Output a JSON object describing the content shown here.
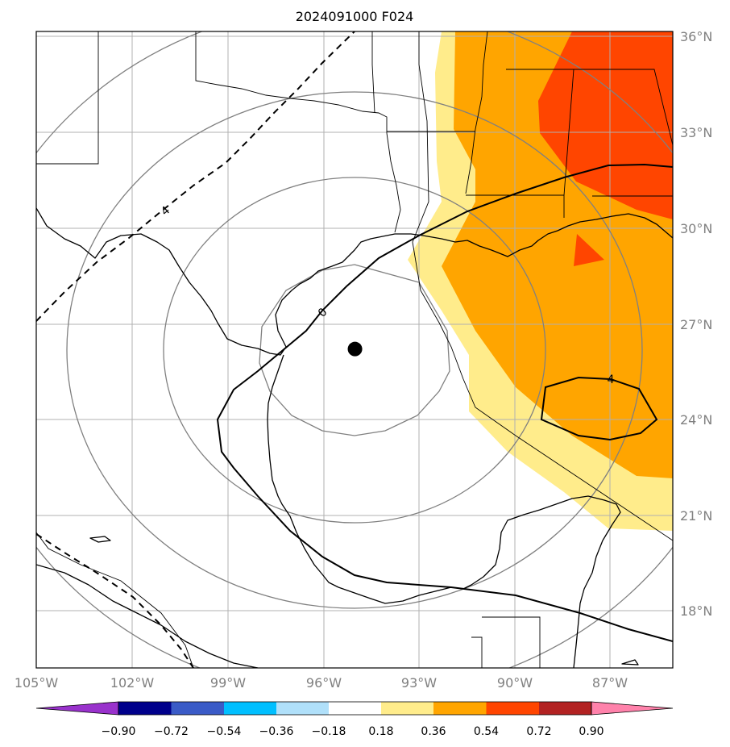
{
  "title": "2024091000 F024",
  "map": {
    "lon_labels": [
      "105°W",
      "102°W",
      "99°W",
      "96°W",
      "93°W",
      "90°W",
      "87°W"
    ],
    "lat_labels": [
      "36°N",
      "33°N",
      "30°N",
      "27°N",
      "24°N",
      "21°N",
      "18°N"
    ],
    "storm_center": {
      "lon": -95.0,
      "lat": 26.2
    },
    "contour_labels": [
      "4",
      "0",
      "4"
    ]
  },
  "colorbar": {
    "tick_labels": [
      "−0.90",
      "−0.72",
      "−0.54",
      "−0.36",
      "−0.18",
      "0.18",
      "0.36",
      "0.54",
      "0.72",
      "0.90"
    ],
    "colors": [
      "#9932cc",
      "#00008b",
      "#3a5bc7",
      "#00bfff",
      "#b0e0fa",
      "#ffffff",
      "#ffec8b",
      "#ffa500",
      "#ff4500",
      "#b22222",
      "#ff82ab"
    ]
  },
  "colors": {
    "fill_light": "#ffec8b",
    "fill_orange": "#ffa500",
    "fill_red": "#ff4500",
    "grid": "#b0b0b0",
    "rings": "#808080"
  }
}
